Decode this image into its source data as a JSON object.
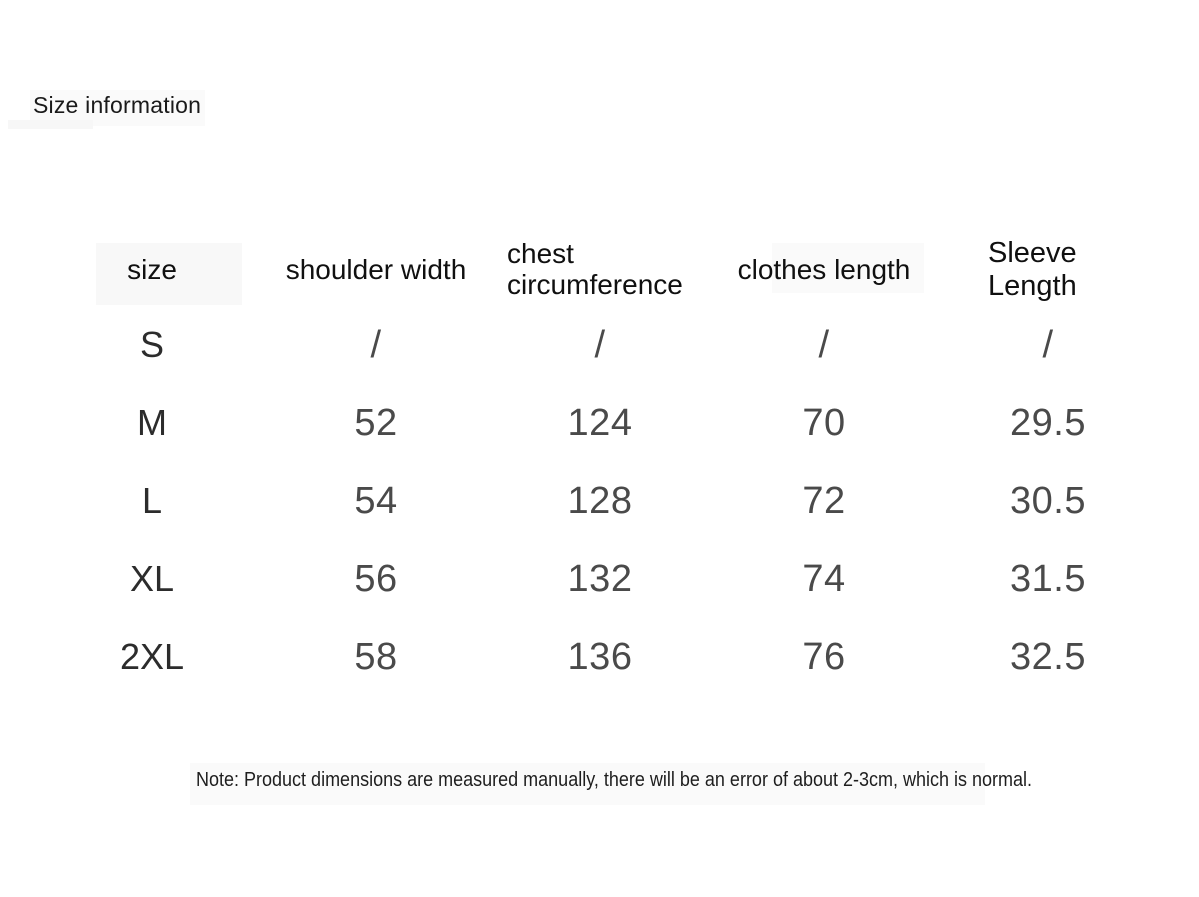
{
  "page": {
    "title": "Size information"
  },
  "table": {
    "columns": [
      {
        "id": "size",
        "label": "size"
      },
      {
        "id": "shoulder_width",
        "label": "shoulder width"
      },
      {
        "id": "chest_circumference",
        "label": "chest circumference"
      },
      {
        "id": "clothes_length",
        "label": "clothes length"
      },
      {
        "id": "sleeve_length",
        "label": "Sleeve Length"
      }
    ],
    "rows": [
      {
        "size": "S",
        "shoulder_width": "/",
        "chest_circumference": "/",
        "clothes_length": "/",
        "sleeve_length": "/"
      },
      {
        "size": "M",
        "shoulder_width": "52",
        "chest_circumference": "124",
        "clothes_length": "70",
        "sleeve_length": "29.5"
      },
      {
        "size": "L",
        "shoulder_width": "54",
        "chest_circumference": "128",
        "clothes_length": "72",
        "sleeve_length": "30.5"
      },
      {
        "size": "XL",
        "shoulder_width": "56",
        "chest_circumference": "132",
        "clothes_length": "74",
        "sleeve_length": "31.5"
      },
      {
        "size": "2XL",
        "shoulder_width": "58",
        "chest_circumference": "136",
        "clothes_length": "76",
        "sleeve_length": "32.5"
      }
    ]
  },
  "note": {
    "text": "Note: Product dimensions are measured manually, there will be an error of about 2-3cm, which is normal."
  },
  "colors": {
    "background": "#ffffff",
    "heading_text": "#101010",
    "data_text": "#4a4a4a"
  }
}
